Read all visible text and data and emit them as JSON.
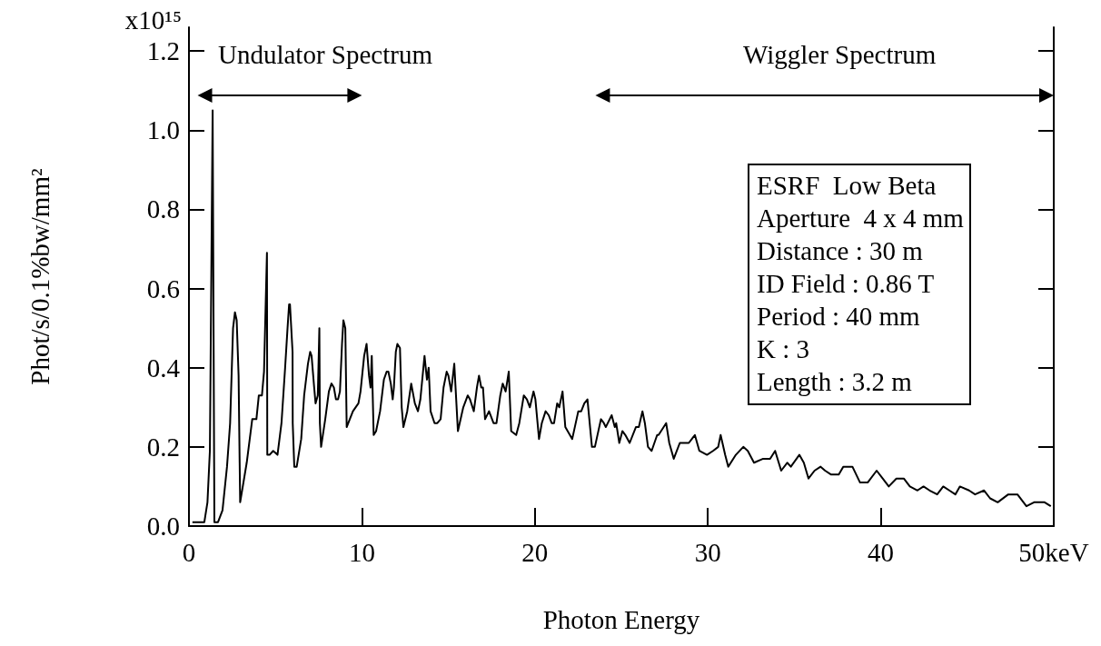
{
  "chart_data": {
    "type": "line",
    "xlabel": "Photon Energy",
    "ylabel": "Phot/s/0.1%bw/mm²",
    "annotations": [
      "x10¹⁵",
      "Undulator Spectrum",
      "Wiggler Spectrum",
      "ESRF  Low Beta",
      "Aperture  4 x 4 mm",
      "Distance : 30 m",
      "ID Field : 0.86 T",
      "Period : 40 mm",
      "K : 3",
      "Length : 3.2 m"
    ],
    "x": [
      0.2,
      0.89,
      1.07,
      1.21,
      1.37,
      1.47,
      1.68,
      1.94,
      2.2,
      2.38,
      2.55,
      2.66,
      2.76,
      2.87,
      2.96,
      3.34,
      3.66,
      3.9,
      4.04,
      4.22,
      4.34,
      4.51,
      4.53,
      4.66,
      4.87,
      5.12,
      5.35,
      5.56,
      5.7,
      5.79,
      5.84,
      5.99,
      6.0,
      6.09,
      6.23,
      6.49,
      6.66,
      6.88,
      7.01,
      7.09,
      7.24,
      7.32,
      7.45,
      7.54,
      7.57,
      7.64,
      7.88,
      8.09,
      8.24,
      8.38,
      8.5,
      8.62,
      8.73,
      8.85,
      8.93,
      9.04,
      9.12,
      9.3,
      9.48,
      9.8,
      9.92,
      10.13,
      10.27,
      10.41,
      10.5,
      10.57,
      10.68,
      10.82,
      11.05,
      11.27,
      11.43,
      11.53,
      11.67,
      11.78,
      11.85,
      11.96,
      12.05,
      12.2,
      12.3,
      12.4,
      12.62,
      12.85,
      13.06,
      13.24,
      13.38,
      13.62,
      13.76,
      13.86,
      13.97,
      14.2,
      14.36,
      14.55,
      14.72,
      14.9,
      15.0,
      15.16,
      15.34,
      15.55,
      15.86,
      16.12,
      16.25,
      16.47,
      16.65,
      16.77,
      16.9,
      17.0,
      17.12,
      17.35,
      17.61,
      17.78,
      18.0,
      18.14,
      18.31,
      18.49,
      18.63,
      18.92,
      19.1,
      19.36,
      19.54,
      19.71,
      19.92,
      20.03,
      20.24,
      20.4,
      20.62,
      20.8,
      20.97,
      21.11,
      21.29,
      21.41,
      21.6,
      21.76,
      22.16,
      22.51,
      22.68,
      22.86,
      23.04,
      23.3,
      23.47,
      23.82,
      23.99,
      24.1,
      24.44,
      24.62,
      24.7,
      24.88,
      25.06,
      25.23,
      25.48,
      25.84,
      26.01,
      26.22,
      26.36,
      26.54,
      26.75,
      27.07,
      27.15,
      27.59,
      27.77,
      28.03,
      28.38,
      28.9,
      29.25,
      29.51,
      29.95,
      30.3,
      30.6,
      30.74,
      31.0,
      31.18,
      31.62,
      32.05,
      32.31,
      32.67,
      33.2,
      33.6,
      33.89,
      34.24,
      34.59,
      34.8,
      35.29,
      35.55,
      35.82,
      36.17,
      36.52,
      36.78,
      37.13,
      37.57,
      37.83,
      38.36,
      38.8,
      39.24,
      39.76,
      40.11,
      40.46,
      40.9,
      41.33,
      41.68,
      42.12,
      42.47,
      42.82,
      43.26,
      43.61,
      43.96,
      44.31,
      44.57,
      45.1,
      45.45,
      45.97,
      46.32,
      46.76,
      47.37,
      47.9,
      48.42,
      48.86,
      49.47,
      49.83
    ],
    "values": [
      0.01,
      0.01,
      0.06,
      0.19,
      1.05,
      0.01,
      0.01,
      0.04,
      0.15,
      0.26,
      0.5,
      0.54,
      0.52,
      0.38,
      0.06,
      0.16,
      0.27,
      0.27,
      0.33,
      0.33,
      0.39,
      0.69,
      0.18,
      0.18,
      0.19,
      0.18,
      0.26,
      0.4,
      0.5,
      0.56,
      0.56,
      0.44,
      0.26,
      0.15,
      0.15,
      0.22,
      0.33,
      0.41,
      0.44,
      0.43,
      0.35,
      0.31,
      0.33,
      0.5,
      0.26,
      0.2,
      0.27,
      0.34,
      0.36,
      0.35,
      0.32,
      0.32,
      0.34,
      0.46,
      0.52,
      0.5,
      0.25,
      0.27,
      0.29,
      0.31,
      0.34,
      0.43,
      0.46,
      0.38,
      0.35,
      0.43,
      0.23,
      0.24,
      0.29,
      0.37,
      0.39,
      0.39,
      0.36,
      0.32,
      0.35,
      0.44,
      0.46,
      0.45,
      0.3,
      0.25,
      0.29,
      0.36,
      0.31,
      0.29,
      0.32,
      0.43,
      0.37,
      0.4,
      0.29,
      0.26,
      0.26,
      0.27,
      0.35,
      0.39,
      0.38,
      0.34,
      0.41,
      0.24,
      0.3,
      0.33,
      0.32,
      0.29,
      0.35,
      0.38,
      0.35,
      0.35,
      0.27,
      0.29,
      0.26,
      0.26,
      0.33,
      0.36,
      0.34,
      0.39,
      0.24,
      0.23,
      0.26,
      0.33,
      0.32,
      0.3,
      0.34,
      0.32,
      0.22,
      0.26,
      0.29,
      0.28,
      0.26,
      0.26,
      0.31,
      0.3,
      0.34,
      0.25,
      0.22,
      0.29,
      0.29,
      0.31,
      0.32,
      0.2,
      0.2,
      0.27,
      0.26,
      0.25,
      0.28,
      0.25,
      0.26,
      0.21,
      0.24,
      0.23,
      0.21,
      0.25,
      0.25,
      0.29,
      0.26,
      0.2,
      0.19,
      0.23,
      0.23,
      0.26,
      0.21,
      0.17,
      0.21,
      0.21,
      0.23,
      0.19,
      0.18,
      0.19,
      0.2,
      0.23,
      0.18,
      0.15,
      0.18,
      0.2,
      0.19,
      0.16,
      0.17,
      0.17,
      0.19,
      0.14,
      0.16,
      0.15,
      0.18,
      0.16,
      0.12,
      0.14,
      0.15,
      0.14,
      0.13,
      0.13,
      0.15,
      0.15,
      0.11,
      0.11,
      0.14,
      0.12,
      0.1,
      0.12,
      0.12,
      0.1,
      0.09,
      0.1,
      0.09,
      0.08,
      0.1,
      0.09,
      0.08,
      0.1,
      0.09,
      0.08,
      0.09,
      0.07,
      0.06,
      0.08,
      0.08,
      0.05,
      0.06,
      0.06,
      0.05
    ],
    "color": "#000000",
    "marker": "none",
    "line_style": "solid",
    "grid": false,
    "xlim": [
      0,
      50
    ],
    "xticks": [
      0,
      10,
      20,
      30,
      40,
      {
        "value": 50,
        "label": "50keV"
      }
    ],
    "ylim": [
      0,
      1.26
    ],
    "yticks": [
      {
        "value": 0,
        "label": "0.0"
      },
      0.2,
      0.4,
      0.6,
      0.8,
      {
        "value": 1,
        "label": "1.0"
      },
      1.2
    ]
  }
}
